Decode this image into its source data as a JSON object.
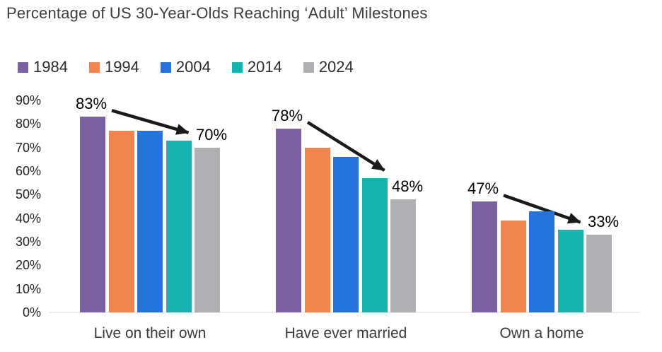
{
  "title": "Percentage of US 30-Year-Olds Reaching ‘Adult’ Milestones",
  "chart_data": {
    "type": "bar",
    "title": "Percentage of US 30-Year-Olds Reaching ‘Adult’ Milestones",
    "categories": [
      "Live on their own",
      "Have ever married",
      "Own a home"
    ],
    "series": [
      {
        "name": "1984",
        "color": "#7b63a3",
        "values": [
          83,
          78,
          47
        ]
      },
      {
        "name": "1994",
        "color": "#f1854f",
        "values": [
          77,
          70,
          39
        ]
      },
      {
        "name": "2004",
        "color": "#2472da",
        "values": [
          77,
          66,
          43
        ]
      },
      {
        "name": "2014",
        "color": "#16b3af",
        "values": [
          73,
          57,
          35
        ]
      },
      {
        "name": "2024",
        "color": "#b0b0b2",
        "values": [
          70,
          48,
          33
        ]
      }
    ],
    "ylim": [
      0,
      90
    ],
    "ytick_step": 10,
    "ytick_suffix": "%",
    "ytick_labels": [
      "0%",
      "10%",
      "20%",
      "30%",
      "40%",
      "50%",
      "60%",
      "70%",
      "80%",
      "90%"
    ],
    "grid": false,
    "legend_position": "top-left",
    "annotations": [
      {
        "category": "Live on their own",
        "start_label": "83%",
        "end_label": "70%"
      },
      {
        "category": "Have ever married",
        "start_label": "78%",
        "end_label": "48%"
      },
      {
        "category": "Own a home",
        "start_label": "47%",
        "end_label": "33%"
      }
    ],
    "colors": {
      "axis_line": "#ececec",
      "arrow": "#1a1a1a",
      "title_text": "#3c3c3c",
      "tick_text": "#212121",
      "category_text": "#3a3a3a",
      "annotation_text": "#000000"
    }
  }
}
